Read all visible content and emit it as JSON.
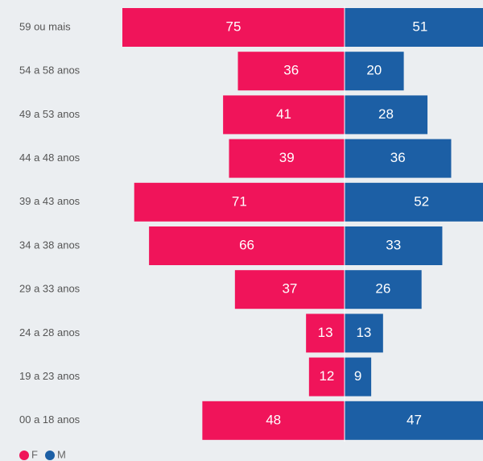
{
  "chart_data": {
    "type": "pyramid",
    "categories": [
      "59 ou mais",
      "54 a 58 anos",
      "49 a 53 anos",
      "44 a 48 anos",
      "39 a 43 anos",
      "34 a 38 anos",
      "29 a 33 anos",
      "24 a 28 anos",
      "19 a 23 anos",
      "00 a 18 anos"
    ],
    "series": [
      {
        "name": "F",
        "color": "#f0145a",
        "values": [
          75,
          36,
          41,
          39,
          71,
          66,
          37,
          13,
          12,
          48
        ]
      },
      {
        "name": "M",
        "color": "#1c5fa5",
        "values": [
          51,
          20,
          28,
          36,
          52,
          33,
          26,
          13,
          9,
          47
        ]
      }
    ]
  }
}
